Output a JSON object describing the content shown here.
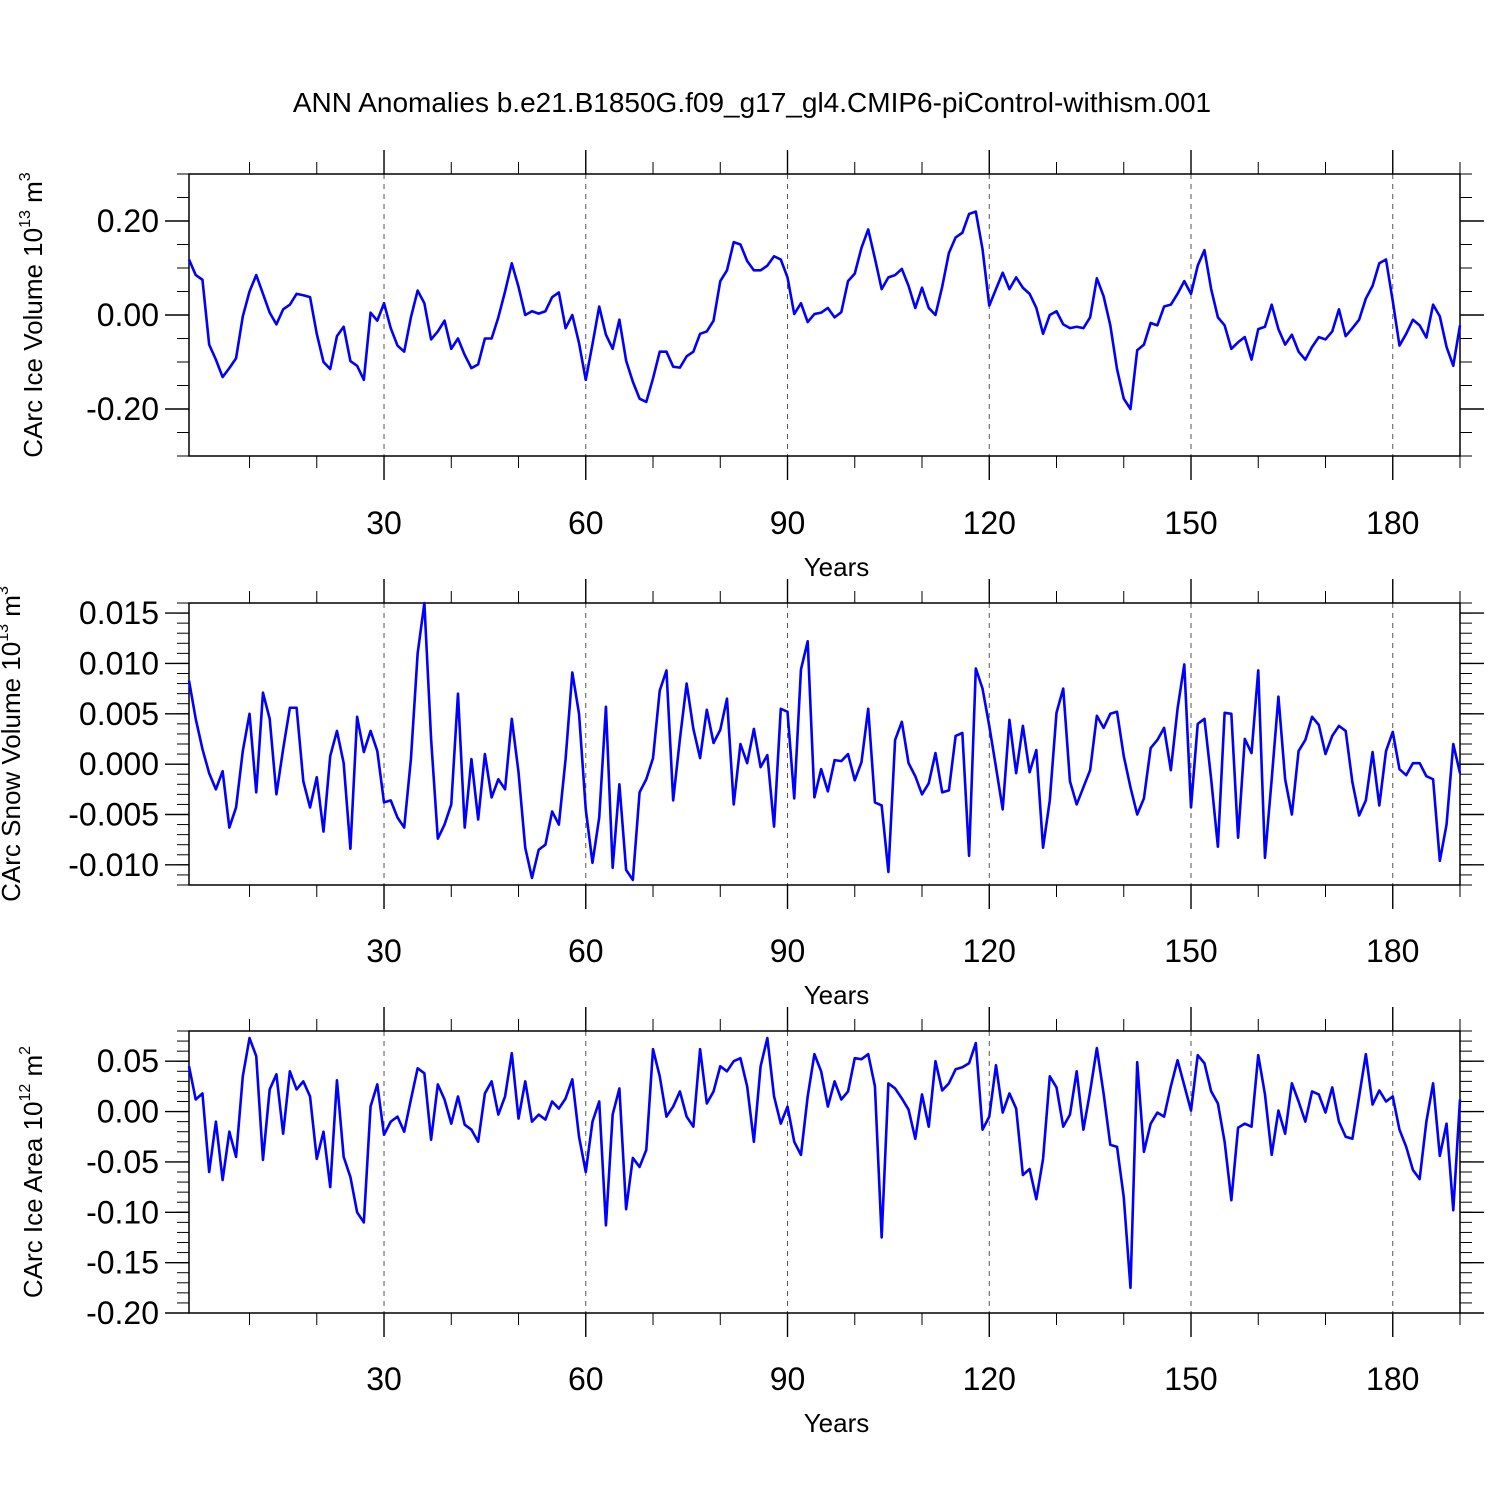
{
  "figure": {
    "title": "ANN Anomalies b.e21.B1850G.f09_g17_gl4.CMIP6-piControl-withism.001",
    "line_color": "#0000ff",
    "grid_style": "dashed vertical lines at major x ticks"
  },
  "chart_data": [
    {
      "type": "line",
      "xlabel": "Years",
      "ylabel_main": "CArc Ice Volume 10",
      "ylabel_exp": "13",
      "ylabel_unit": " m",
      "ylabel_unit_exp": "3",
      "xlim": [
        1,
        190
      ],
      "ylim": [
        -0.3,
        0.3
      ],
      "xticks": [
        30,
        60,
        90,
        120,
        150,
        180
      ],
      "xtick_labels": [
        "30",
        "60",
        "90",
        "120",
        "150",
        "180"
      ],
      "yticks": [
        -0.2,
        0.0,
        0.2
      ],
      "ytick_labels": [
        "-0.20",
        "0.00",
        "0.20"
      ],
      "y_minor_step": 0.05,
      "x_start": 1,
      "series": [
        {
          "values": [
            0.118,
            0.085,
            0.075,
            -0.063,
            -0.095,
            -0.132,
            -0.113,
            -0.092,
            -0.003,
            0.05,
            0.085,
            0.045,
            0.005,
            -0.02,
            0.012,
            0.022,
            0.045,
            0.042,
            0.038,
            -0.04,
            -0.1,
            -0.115,
            -0.045,
            -0.025,
            -0.098,
            -0.108,
            -0.138,
            0.005,
            -0.012,
            0.025,
            -0.028,
            -0.065,
            -0.078,
            -0.005,
            0.052,
            0.025,
            -0.052,
            -0.035,
            -0.012,
            -0.072,
            -0.05,
            -0.085,
            -0.113,
            -0.105,
            -0.05,
            -0.05,
            -0.005,
            0.05,
            0.11,
            0.06,
            0.0,
            0.008,
            0.003,
            0.008,
            0.038,
            0.048,
            -0.028,
            0.0,
            -0.06,
            -0.138,
            -0.062,
            0.018,
            -0.042,
            -0.072,
            -0.01,
            -0.097,
            -0.142,
            -0.178,
            -0.185,
            -0.135,
            -0.078,
            -0.078,
            -0.11,
            -0.112,
            -0.088,
            -0.078,
            -0.04,
            -0.035,
            -0.012,
            0.072,
            0.095,
            0.155,
            0.15,
            0.115,
            0.095,
            0.095,
            0.105,
            0.125,
            0.118,
            0.08,
            0.002,
            0.025,
            -0.015,
            0.002,
            0.005,
            0.015,
            -0.005,
            0.006,
            0.072,
            0.088,
            0.143,
            0.182,
            0.12,
            0.055,
            0.08,
            0.085,
            0.098,
            0.062,
            0.015,
            0.058,
            0.015,
            0.0,
            0.06,
            0.132,
            0.165,
            0.175,
            0.215,
            0.22,
            0.14,
            0.02,
            0.055,
            0.09,
            0.055,
            0.08,
            0.058,
            0.045,
            0.015,
            -0.04,
            0.0,
            0.008,
            -0.02,
            -0.028,
            -0.025,
            -0.028,
            -0.005,
            0.078,
            0.04,
            -0.022,
            -0.115,
            -0.178,
            -0.2,
            -0.075,
            -0.063,
            -0.017,
            -0.022,
            0.018,
            0.022,
            0.045,
            0.072,
            0.045,
            0.105,
            0.138,
            0.055,
            -0.005,
            -0.022,
            -0.072,
            -0.058,
            -0.047,
            -0.095,
            -0.03,
            -0.025,
            0.022,
            -0.03,
            -0.063,
            -0.042,
            -0.078,
            -0.095,
            -0.068,
            -0.047,
            -0.052,
            -0.035,
            0.012,
            -0.045,
            -0.028,
            -0.01,
            0.035,
            0.062,
            0.11,
            0.118,
            0.03,
            -0.065,
            -0.04,
            -0.01,
            -0.022,
            -0.048,
            0.022,
            -0.003,
            -0.068,
            -0.108,
            -0.022
          ]
        }
      ]
    },
    {
      "type": "line",
      "xlabel": "Years",
      "ylabel_main": "CArc Snow Volume 10",
      "ylabel_exp": "13",
      "ylabel_unit": " m",
      "ylabel_unit_exp": "3",
      "xlim": [
        1,
        190
      ],
      "ylim": [
        -0.012,
        0.016
      ],
      "xticks": [
        30,
        60,
        90,
        120,
        150,
        180
      ],
      "xtick_labels": [
        "30",
        "60",
        "90",
        "120",
        "150",
        "180"
      ],
      "yticks": [
        -0.01,
        -0.005,
        0.0,
        0.005,
        0.01,
        0.015
      ],
      "ytick_labels": [
        "-0.010",
        "-0.005",
        "0.000",
        "0.005",
        "0.010",
        "0.015"
      ],
      "y_minor_step": 0.001,
      "x_start": 1,
      "series": [
        {
          "values": [
            0.0083,
            0.0045,
            0.0015,
            -0.0009,
            -0.0025,
            -0.0007,
            -0.0063,
            -0.0043,
            0.0013,
            0.005,
            -0.0028,
            0.0071,
            0.0045,
            -0.003,
            0.0015,
            0.0056,
            0.0056,
            -0.0017,
            -0.0043,
            -0.0013,
            -0.0067,
            0.0008,
            0.0033,
            0.0001,
            -0.0084,
            0.0047,
            0.0012,
            0.0033,
            0.0013,
            -0.0038,
            -0.0036,
            -0.0053,
            -0.0063,
            0.0005,
            0.011,
            0.016,
            0.0025,
            -0.0074,
            -0.006,
            -0.004,
            0.007,
            -0.0063,
            0.0005,
            -0.0055,
            0.001,
            -0.0033,
            -0.0015,
            -0.0025,
            0.0045,
            -0.0008,
            -0.0083,
            -0.0113,
            -0.0085,
            -0.008,
            -0.0047,
            -0.006,
            0.0005,
            0.0091,
            0.005,
            -0.0045,
            -0.0098,
            -0.0053,
            0.0057,
            -0.0103,
            -0.002,
            -0.0105,
            -0.0115,
            -0.0028,
            -0.0015,
            0.0006,
            0.0073,
            0.0093,
            -0.0036,
            0.0025,
            0.008,
            0.0035,
            0.0006,
            0.0054,
            0.0021,
            0.0034,
            0.0065,
            -0.004,
            0.002,
            0.0001,
            0.0035,
            -0.0003,
            0.0009,
            -0.0062,
            0.0055,
            0.0052,
            -0.0034,
            0.0094,
            0.0122,
            -0.0033,
            -0.0005,
            -0.0027,
            0.0004,
            0.0003,
            0.001,
            -0.0016,
            0.0002,
            0.0055,
            -0.0038,
            -0.0041,
            -0.0107,
            0.0024,
            0.0042,
            0.0001,
            -0.0012,
            -0.003,
            -0.0019,
            0.0011,
            -0.0028,
            -0.0026,
            0.0028,
            0.0031,
            -0.0091,
            0.0095,
            0.0075,
            0.0038,
            -0.0003,
            -0.0045,
            0.0044,
            -0.0009,
            0.0038,
            -0.0008,
            0.0014,
            -0.0083,
            -0.0036,
            0.0051,
            0.0075,
            -0.0017,
            -0.004,
            -0.0023,
            -0.0006,
            0.0048,
            0.0036,
            0.005,
            0.0052,
            0.0008,
            -0.0023,
            -0.005,
            -0.0034,
            0.0016,
            0.0024,
            0.0036,
            -0.0006,
            0.0055,
            0.0099,
            -0.0043,
            0.004,
            0.0045,
            -0.0015,
            -0.0082,
            0.0051,
            0.005,
            -0.0073,
            0.0025,
            0.0011,
            0.0093,
            -0.0093,
            -0.0015,
            0.0067,
            -0.0015,
            -0.005,
            0.0013,
            0.0024,
            0.0047,
            0.0039,
            0.001,
            0.0028,
            0.0038,
            0.0033,
            -0.0018,
            -0.0051,
            -0.0036,
            0.0012,
            -0.0041,
            0.0013,
            0.0032,
            -0.0005,
            -0.0011,
            0.0001,
            0.0001,
            -0.0012,
            -0.0015,
            -0.0096,
            -0.006,
            0.002,
            -0.0009
          ]
        }
      ]
    },
    {
      "type": "line",
      "xlabel": "Years",
      "ylabel_main": "CArc Ice Area 10",
      "ylabel_exp": "12",
      "ylabel_unit": " m",
      "ylabel_unit_exp": "2",
      "xlim": [
        1,
        190
      ],
      "ylim": [
        -0.2,
        0.08
      ],
      "xticks": [
        30,
        60,
        90,
        120,
        150,
        180
      ],
      "xtick_labels": [
        "30",
        "60",
        "90",
        "120",
        "150",
        "180"
      ],
      "yticks": [
        -0.2,
        -0.15,
        -0.1,
        -0.05,
        0.0,
        0.05
      ],
      "ytick_labels": [
        "-0.20",
        "-0.15",
        "-0.10",
        "-0.05",
        "0.00",
        "0.05"
      ],
      "y_minor_step": 0.01,
      "x_start": 1,
      "series": [
        {
          "values": [
            0.045,
            0.012,
            0.018,
            -0.06,
            -0.01,
            -0.068,
            -0.02,
            -0.045,
            0.035,
            0.073,
            0.055,
            -0.048,
            0.022,
            0.037,
            -0.022,
            0.04,
            0.022,
            0.03,
            0.015,
            -0.047,
            -0.02,
            -0.075,
            0.031,
            -0.045,
            -0.065,
            -0.1,
            -0.11,
            0.005,
            0.027,
            -0.023,
            -0.01,
            -0.005,
            -0.02,
            0.012,
            0.043,
            0.038,
            -0.028,
            0.027,
            0.012,
            -0.012,
            0.015,
            -0.013,
            -0.018,
            -0.03,
            0.018,
            0.03,
            -0.003,
            0.015,
            0.058,
            -0.007,
            0.03,
            -0.01,
            -0.003,
            -0.008,
            0.01,
            0.003,
            0.013,
            0.032,
            -0.025,
            -0.06,
            -0.01,
            0.01,
            -0.113,
            -0.003,
            0.023,
            -0.097,
            -0.046,
            -0.055,
            -0.038,
            0.062,
            0.035,
            -0.005,
            0.005,
            0.02,
            -0.005,
            -0.015,
            0.062,
            0.008,
            0.02,
            0.045,
            0.04,
            0.05,
            0.053,
            0.025,
            -0.03,
            0.045,
            0.073,
            0.015,
            -0.012,
            0.005,
            -0.03,
            -0.043,
            0.015,
            0.057,
            0.04,
            0.005,
            0.03,
            0.012,
            0.02,
            0.053,
            0.052,
            0.057,
            0.025,
            -0.125,
            0.028,
            0.023,
            0.013,
            0.002,
            -0.027,
            0.017,
            -0.015,
            0.05,
            0.021,
            0.028,
            0.042,
            0.044,
            0.048,
            0.068,
            -0.018,
            -0.005,
            0.046,
            -0.001,
            0.018,
            0.003,
            -0.063,
            -0.057,
            -0.087,
            -0.047,
            0.035,
            0.024,
            -0.015,
            -0.003,
            0.04,
            -0.018,
            0.02,
            0.063,
            0.018,
            -0.033,
            -0.035,
            -0.085,
            -0.175,
            0.049,
            -0.04,
            -0.012,
            -0.001,
            -0.005,
            0.025,
            0.051,
            0.026,
            0.001,
            0.056,
            0.048,
            0.02,
            0.008,
            -0.03,
            -0.088,
            -0.016,
            -0.012,
            -0.015,
            0.056,
            0.017,
            -0.043,
            0.001,
            -0.022,
            0.028,
            0.01,
            -0.01,
            0.02,
            0.017,
            -0.001,
            0.024,
            -0.01,
            -0.025,
            -0.027,
            0.015,
            0.057,
            0.007,
            0.021,
            0.01,
            0.015,
            -0.018,
            -0.035,
            -0.058,
            -0.067,
            -0.01,
            0.028,
            -0.044,
            -0.012,
            -0.098,
            0.012
          ]
        }
      ]
    }
  ]
}
